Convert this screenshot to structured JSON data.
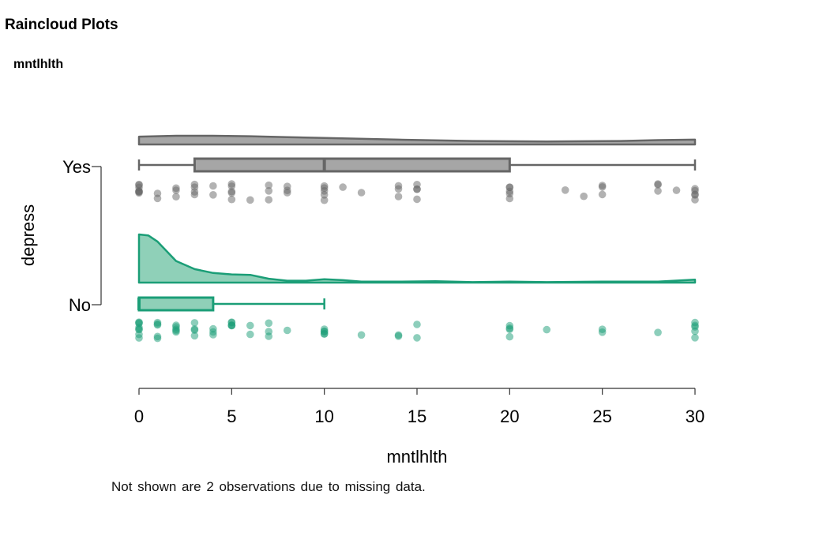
{
  "page": {
    "title": "Raincloud Plots",
    "subtitle": "mntlhlth"
  },
  "footnote": "Not shown are 2 observations  due to missing data.",
  "chart_data": {
    "type": "raincloud",
    "xlabel": "mntlhlth",
    "ylabel": "depress",
    "xlim": [
      0,
      30
    ],
    "xticks": [
      0,
      5,
      10,
      15,
      20,
      25,
      30
    ],
    "grid": false,
    "groups": [
      {
        "name": "Yes",
        "color": "#a6a6a6",
        "edge": "#666666",
        "box": {
          "min": 0,
          "q1": 3,
          "median": 10,
          "q3": 20,
          "max": 30
        },
        "density_x": [
          0,
          2,
          4,
          6,
          8,
          10,
          14,
          18,
          22,
          26,
          28,
          30
        ],
        "density": [
          0.9,
          1.0,
          1.0,
          0.95,
          0.85,
          0.75,
          0.55,
          0.4,
          0.35,
          0.4,
          0.5,
          0.55
        ],
        "points": [
          0,
          0,
          0,
          0,
          0,
          0,
          0,
          1,
          1,
          2,
          2,
          2,
          3,
          3,
          3,
          3,
          4,
          4,
          5,
          5,
          5,
          5,
          5,
          6,
          7,
          7,
          7,
          8,
          8,
          8,
          10,
          10,
          10,
          10,
          10,
          11,
          12,
          14,
          14,
          14,
          15,
          15,
          15,
          15,
          20,
          20,
          20,
          20,
          20,
          23,
          24,
          25,
          25,
          25,
          28,
          28,
          28,
          29,
          30,
          30,
          30,
          30,
          30
        ]
      },
      {
        "name": "No",
        "color": "#8fd0b8",
        "edge": "#1b9e77",
        "box": {
          "min": 0,
          "q1": 0,
          "median": 0,
          "q3": 4,
          "max": 10
        },
        "density_x": [
          0,
          0.5,
          1,
          1.5,
          2,
          3,
          4,
          5,
          6,
          7,
          8,
          9,
          10,
          11,
          12,
          14,
          16,
          18,
          20,
          22,
          25,
          28,
          30
        ],
        "density": [
          1.0,
          0.98,
          0.85,
          0.65,
          0.45,
          0.28,
          0.2,
          0.17,
          0.16,
          0.08,
          0.04,
          0.04,
          0.07,
          0.05,
          0.02,
          0.02,
          0.03,
          0.01,
          0.02,
          0.01,
          0.02,
          0.02,
          0.06
        ],
        "points": [
          0,
          0,
          0,
          0,
          0,
          0,
          0,
          0,
          1,
          1,
          1,
          1,
          1,
          2,
          2,
          2,
          2,
          2,
          3,
          3,
          3,
          3,
          4,
          4,
          4,
          5,
          5,
          5,
          5,
          5,
          6,
          6,
          7,
          7,
          7,
          8,
          10,
          10,
          10,
          10,
          10,
          12,
          14,
          14,
          15,
          15,
          20,
          20,
          20,
          20,
          22,
          25,
          25,
          28,
          30,
          30,
          30,
          30,
          30
        ]
      }
    ]
  }
}
